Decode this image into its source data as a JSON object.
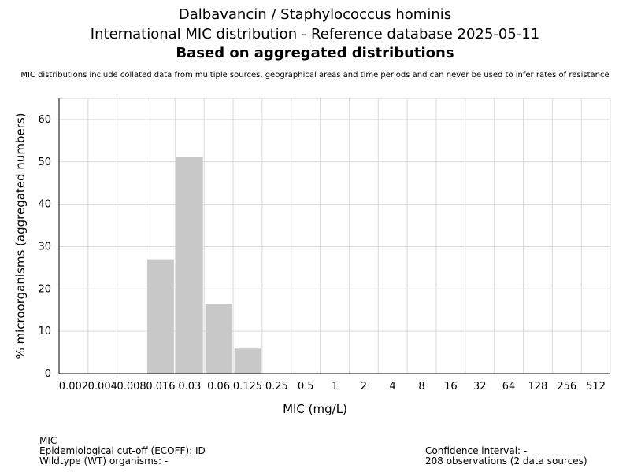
{
  "header": {
    "title_line1": "Dalbavancin / Staphylococcus hominis",
    "title_line2": "International MIC distribution - Reference database 2025-05-11",
    "title_line3": "Based on aggregated distributions",
    "subtitle": "MIC distributions include collated data from multiple sources, geographical areas and time periods and can never be used to infer rates of resistance"
  },
  "chart_data": {
    "type": "bar",
    "title": "Dalbavancin / Staphylococcus hominis",
    "xlabel": "MIC (mg/L)",
    "ylabel": "% microorganisms (aggregated numbers)",
    "categories": [
      "0.002",
      "0.004",
      "0.008",
      "0.016",
      "0.03",
      "0.06",
      "0.125",
      "0.25",
      "0.5",
      "1",
      "2",
      "4",
      "8",
      "16",
      "32",
      "64",
      "128",
      "256",
      "512"
    ],
    "values": [
      0,
      0,
      0,
      27.0,
      51.1,
      16.5,
      5.9,
      0,
      0,
      0,
      0,
      0,
      0,
      0,
      0,
      0,
      0,
      0,
      0
    ],
    "ylim": [
      0,
      65
    ],
    "yticks": [
      0,
      10,
      20,
      30,
      40,
      50,
      60
    ],
    "grid": true,
    "bar_color": "#c8c8c8"
  },
  "footer": {
    "left": [
      "MIC",
      "Epidemiological cut-off (ECOFF): ID",
      "Wildtype (WT) organisms:  -"
    ],
    "right": [
      "Confidence interval: -",
      "208 observations (2 data sources)"
    ]
  }
}
